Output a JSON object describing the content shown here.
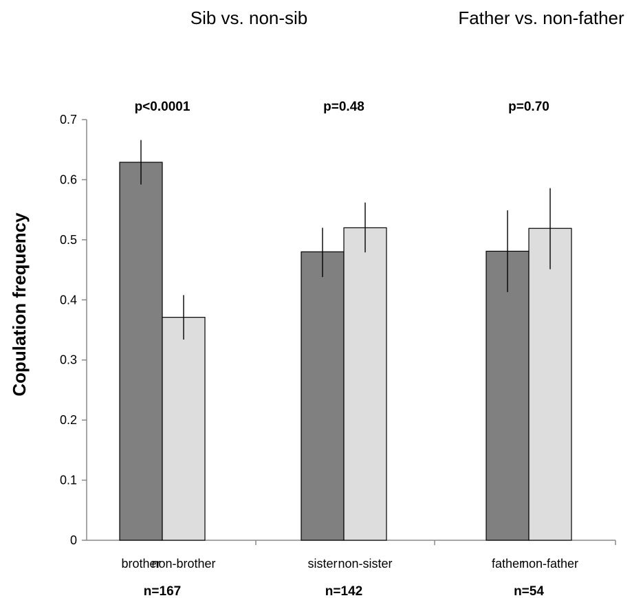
{
  "headers": {
    "left": "Sib vs. non-sib",
    "right": "Father vs. non-father"
  },
  "chart_data": {
    "type": "bar",
    "ylabel": "Copulation frequency",
    "ylim": [
      0,
      0.7
    ],
    "yticks": [
      "0",
      "0.1",
      "0.2",
      "0.3",
      "0.4",
      "0.5",
      "0.6",
      "0.7"
    ],
    "colors": {
      "dark": "#808080",
      "light": "#dddddd"
    },
    "groups": [
      {
        "p_label": "p<0.0001",
        "n_label": "n=167",
        "bars": [
          {
            "label": "brother",
            "value": 0.629,
            "err_low": 0.592,
            "err_high": 0.666,
            "shade": "dark"
          },
          {
            "label": "non-brother",
            "value": 0.371,
            "err_low": 0.334,
            "err_high": 0.408,
            "shade": "light"
          }
        ]
      },
      {
        "p_label": "p=0.48",
        "n_label": "n=142",
        "bars": [
          {
            "label": "sister",
            "value": 0.48,
            "err_low": 0.438,
            "err_high": 0.52,
            "shade": "dark"
          },
          {
            "label": "non-sister",
            "value": 0.52,
            "err_low": 0.479,
            "err_high": 0.562,
            "shade": "light"
          }
        ]
      },
      {
        "p_label": "p=0.70",
        "n_label": "n=54",
        "bars": [
          {
            "label": "father",
            "value": 0.481,
            "err_low": 0.413,
            "err_high": 0.549,
            "shade": "dark"
          },
          {
            "label": "non-father",
            "value": 0.519,
            "err_low": 0.451,
            "err_high": 0.586,
            "shade": "light"
          }
        ]
      }
    ]
  }
}
